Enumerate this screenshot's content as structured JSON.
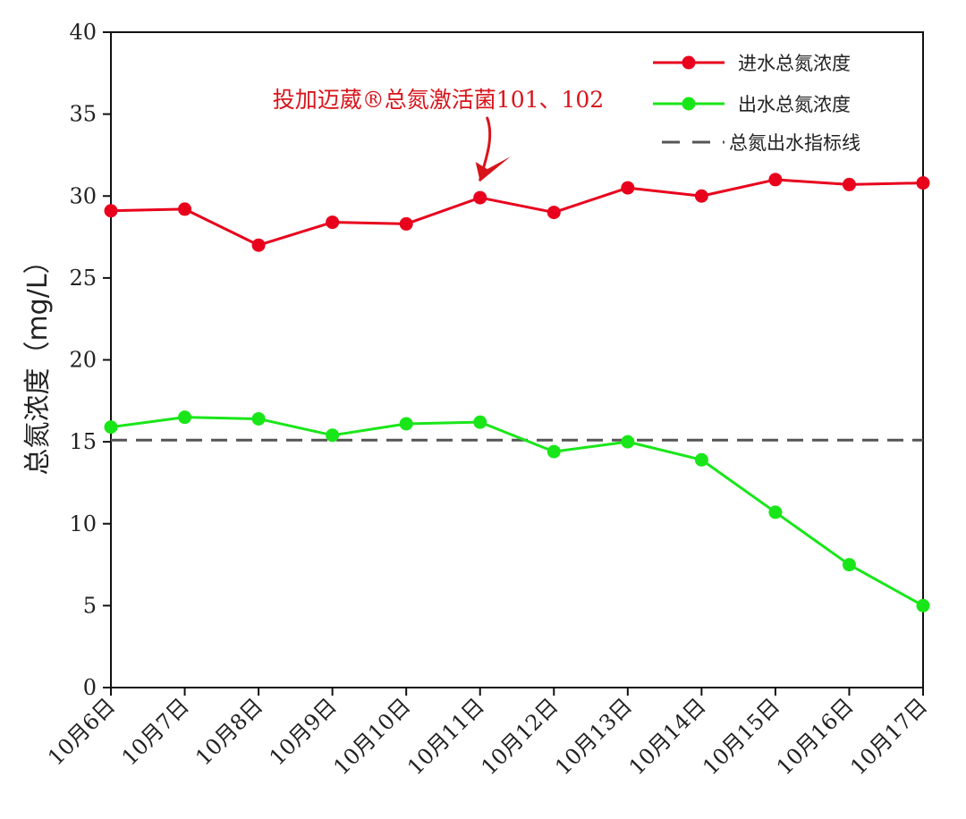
{
  "chart_data": {
    "type": "line",
    "categories": [
      "10月6日",
      "10月7日",
      "10月8日",
      "10月9日",
      "10月10日",
      "10月11日",
      "10月12日",
      "10月13日",
      "10月14日",
      "10月15日",
      "10月16日",
      "10月17日"
    ],
    "ylabel": "总氮浓度（mg/L）",
    "xlabel": "",
    "ylim": [
      0,
      40
    ],
    "yticks": [
      0,
      5,
      10,
      15,
      20,
      25,
      30,
      35,
      40
    ],
    "grid": false,
    "legend_position": "top-right",
    "series": [
      {
        "name": "进水总氮浓度",
        "color": "#e8001c",
        "values": [
          29.1,
          29.2,
          27.0,
          28.4,
          28.3,
          29.9,
          29.0,
          30.5,
          30.0,
          31.0,
          30.7,
          30.8
        ]
      },
      {
        "name": "出水总氮浓度",
        "color": "#19e619",
        "values": [
          15.9,
          16.5,
          16.4,
          15.4,
          16.1,
          16.2,
          14.4,
          15.0,
          13.9,
          10.7,
          7.5,
          5.0
        ]
      }
    ],
    "reference_line": {
      "name": "总氮出水指标线",
      "value": 15.1,
      "color": "#555555",
      "style": "dashed"
    },
    "annotations": [
      {
        "text": "投加迈葳®总氮激活菌101、102",
        "category": "10月11日",
        "color": "#d8141b"
      }
    ]
  }
}
